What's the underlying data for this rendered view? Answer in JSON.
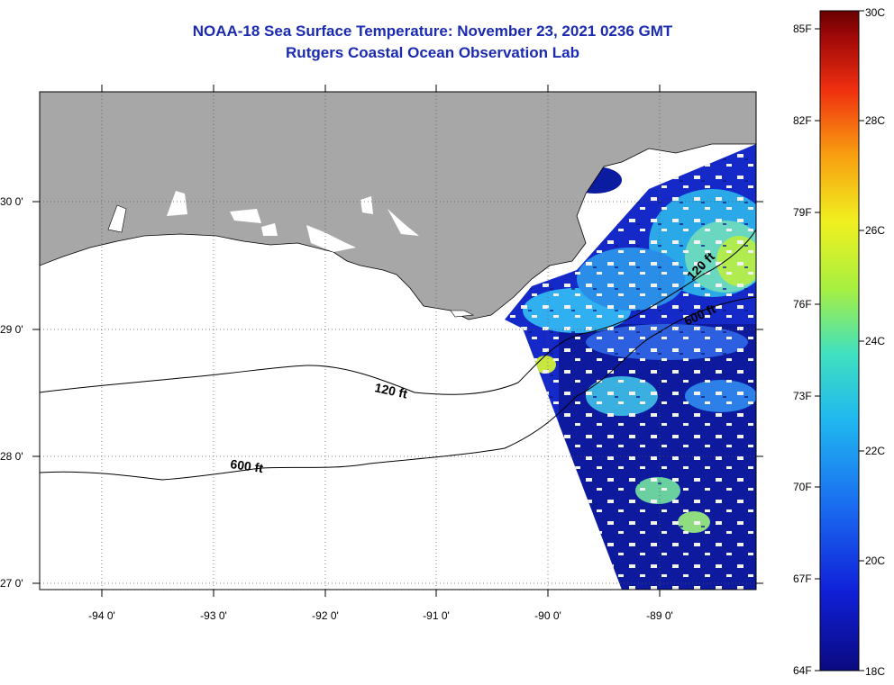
{
  "header": {
    "title": "NOAA-18 Sea Surface Temperature:  November 23, 2021 0236 GMT",
    "subtitle": "Rutgers Coastal Ocean Observation Lab"
  },
  "map": {
    "lon_labels": [
      "-94 0'",
      "-93 0'",
      "-92 0'",
      "-91 0'",
      "-90 0'",
      "-89 0'"
    ],
    "lat_labels": [
      "30 0'",
      "29 0'",
      "28 0'",
      "27 0'"
    ],
    "contours": [
      "120 ft",
      "600 ft",
      "120 ft",
      "600 ft"
    ]
  },
  "colorbar": {
    "fahrenheit_labels": [
      "85F",
      "82F",
      "79F",
      "76F",
      "73F",
      "70F",
      "67F",
      "64F"
    ],
    "celsius_labels": [
      "30C",
      "28C",
      "26C",
      "24C",
      "22C",
      "20C",
      "18C"
    ],
    "colors": [
      "#0a0a80",
      "#1020d8",
      "#1a6cf0",
      "#20b8f0",
      "#40e0c0",
      "#a8f040",
      "#f0f020",
      "#f8a010",
      "#f03010",
      "#a00808",
      "#6a0000"
    ]
  },
  "colors": {
    "land": "#a7a7a7",
    "title": "#1a2bb0"
  }
}
